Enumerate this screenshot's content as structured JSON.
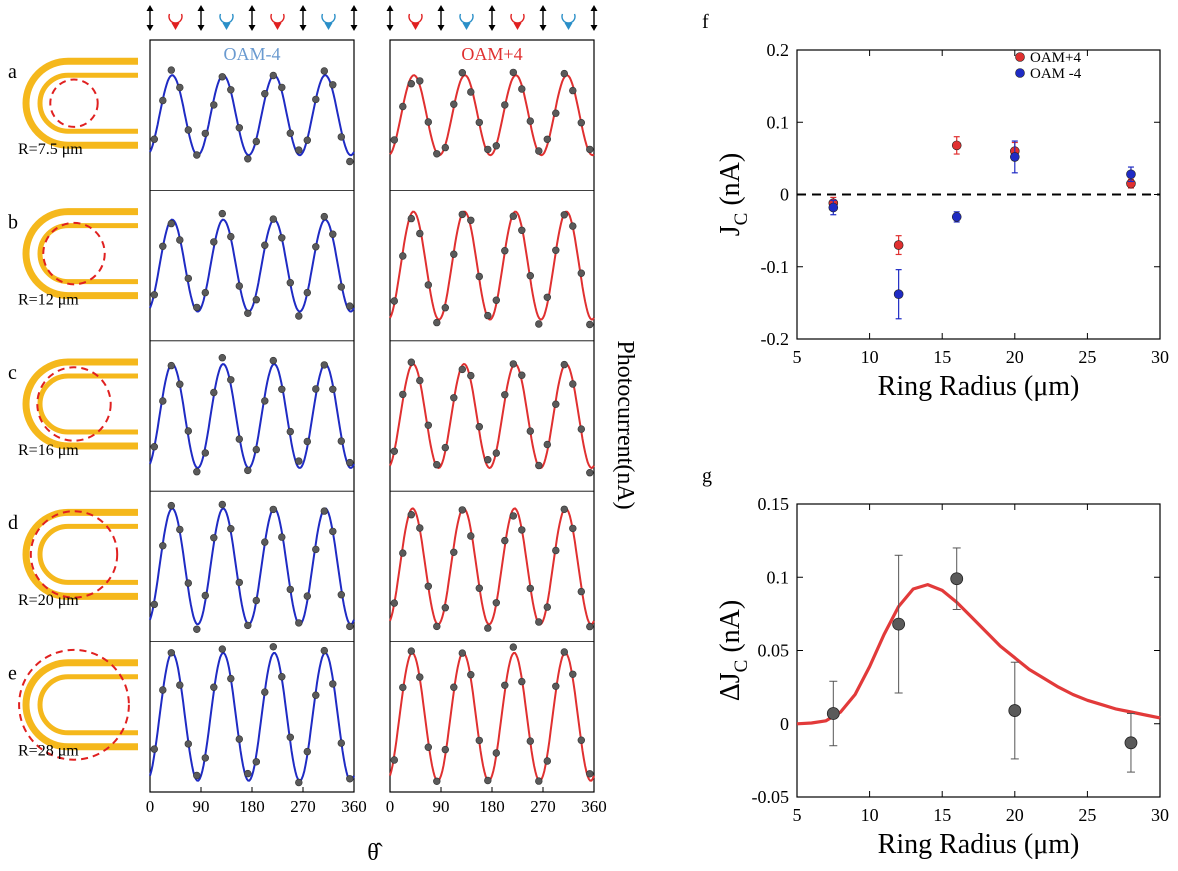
{
  "colors": {
    "oam_minus": "#1f2bc4",
    "oam_plus": "#e03030",
    "oam_minus_title": "#6a9ad0",
    "oam_plus_title": "#e03030",
    "ring": "#f5b81c",
    "point": "#5a5a5a",
    "fit_g": "#e23a3a",
    "arrow_red": "#e02020",
    "arrow_blue": "#2a8fc8"
  },
  "polarization_icons": [
    "linear",
    "circular-red",
    "linear",
    "circular-blue",
    "linear",
    "circular-red",
    "linear",
    "circular-blue",
    "linear"
  ],
  "panels": {
    "columns": [
      {
        "title": "OAM-4",
        "color_key": "oam_minus_title"
      },
      {
        "title": "OAM+4",
        "color_key": "oam_plus_title"
      }
    ],
    "rows": [
      {
        "letter": "a",
        "radius_label": "R=7.5 μm",
        "ring_scale": 0.45
      },
      {
        "letter": "b",
        "radius_label": "R=12 μm",
        "ring_scale": 0.72
      },
      {
        "letter": "c",
        "radius_label": "R=16 μm",
        "ring_scale": 0.95
      },
      {
        "letter": "d",
        "radius_label": "R=20 μm",
        "ring_scale": 1.2
      },
      {
        "letter": "e",
        "radius_label": "R=28 μm",
        "ring_scale": 1.65
      }
    ],
    "x_ticks": [
      "0",
      "90",
      "180",
      "270",
      "360"
    ],
    "x_label": "θ̂",
    "y_label": "Photocurrent(nA)"
  },
  "chart_data": [
    {
      "id": "f",
      "type": "scatter",
      "panel_letter": "f",
      "xlabel": "Ring Radius (μm)",
      "ylabel": "J",
      "ylabel_sub": "C",
      "ylabel_unit": " (nA)",
      "xlim": [
        5,
        30
      ],
      "ylim": [
        -0.2,
        0.2
      ],
      "x_ticks": [
        "5",
        "10",
        "15",
        "20",
        "25",
        "30"
      ],
      "y_ticks": [
        "-0.2",
        "-0.1",
        "0",
        "0.1",
        "0.2"
      ],
      "y_tick_values": [
        -0.2,
        -0.1,
        0,
        0.1,
        0.2
      ],
      "x_tick_values": [
        5,
        10,
        15,
        20,
        25,
        30
      ],
      "zero_line": "dashed",
      "legend_position": "top-right",
      "series": [
        {
          "name": "OAM+4",
          "color_key": "oam_plus",
          "x": [
            7.5,
            12,
            16,
            20,
            28
          ],
          "y": [
            -0.012,
            -0.07,
            0.068,
            0.06,
            0.015
          ],
          "err": [
            0.008,
            0.013,
            0.012,
            0.012,
            0.006
          ]
        },
        {
          "name": "OAM -4",
          "color_key": "oam_minus",
          "x": [
            7.5,
            12,
            16,
            20,
            28
          ],
          "y": [
            -0.018,
            -0.138,
            -0.031,
            0.052,
            0.028
          ],
          "err": [
            0.01,
            0.034,
            0.007,
            0.022,
            0.01
          ]
        }
      ]
    },
    {
      "id": "g",
      "type": "scatter",
      "panel_letter": "g",
      "xlabel": "Ring Radius (μm)",
      "ylabel": "ΔJ",
      "ylabel_sub": "C",
      "ylabel_unit": " (nA)",
      "xlim": [
        5,
        30
      ],
      "ylim": [
        -0.05,
        0.15
      ],
      "x_ticks": [
        "5",
        "10",
        "15",
        "20",
        "25",
        "30"
      ],
      "x_tick_values": [
        5,
        10,
        15,
        20,
        25,
        30
      ],
      "y_ticks": [
        "-0.05",
        "0",
        "0.05",
        "0.1",
        "0.15"
      ],
      "y_tick_values": [
        -0.05,
        0,
        0.05,
        0.1,
        0.15
      ],
      "points": {
        "x": [
          7.5,
          12,
          16,
          20,
          28
        ],
        "y": [
          0.007,
          0.068,
          0.099,
          0.009,
          -0.013
        ],
        "err": [
          0.022,
          0.047,
          0.021,
          0.033,
          0.02
        ]
      },
      "fit": {
        "x": [
          5,
          6,
          7,
          8,
          9,
          10,
          11,
          12,
          13,
          14,
          15,
          16,
          17,
          18,
          19,
          20,
          21,
          22,
          23,
          24,
          25,
          26,
          27,
          28,
          29,
          30
        ],
        "y": [
          0.0,
          0.0005,
          0.002,
          0.008,
          0.02,
          0.039,
          0.061,
          0.08,
          0.092,
          0.095,
          0.091,
          0.083,
          0.073,
          0.063,
          0.053,
          0.045,
          0.037,
          0.031,
          0.025,
          0.02,
          0.016,
          0.013,
          0.01,
          0.008,
          0.006,
          0.004
        ]
      }
    }
  ]
}
